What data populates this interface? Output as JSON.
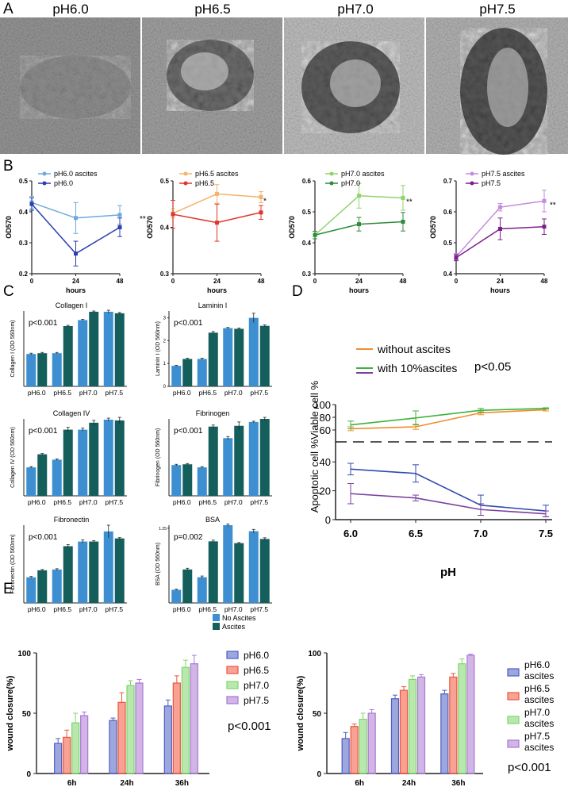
{
  "panel_labels": {
    "A": "A",
    "B": "B",
    "C": "C",
    "D": "D",
    "E": "E"
  },
  "micrographs": {
    "titles": [
      "pH6.0",
      "pH6.5",
      "pH7.0",
      "pH7.5"
    ]
  },
  "colors": {
    "b_light": [
      "#6fa8dc",
      "#f6b26b",
      "#8fd36b",
      "#c58bdc"
    ],
    "b_dark": [
      "#2b3fae",
      "#e0352b",
      "#2e8b3a",
      "#7b1f8c"
    ],
    "c_blue": "#3d8fd1",
    "c_teal": "#145e5b",
    "d_orange": "#f28c28",
    "d_green": "#3cb43c",
    "d_purple": "#7a3fa0",
    "d_blue": "#2f4bb0",
    "e": [
      "#4d5fc2",
      "#f0553e",
      "#7fd66b",
      "#a979d1"
    ]
  },
  "chart_data": [
    {
      "id": "B1",
      "type": "line",
      "ylabel": "OD570",
      "xlabel": "hours",
      "x": [
        0,
        24,
        48
      ],
      "ylim": [
        0.2,
        0.5
      ],
      "yticks": [
        0.2,
        0.3,
        0.4,
        0.5
      ],
      "xticks": [
        0,
        24,
        48
      ],
      "series": [
        {
          "name": "pH6.0 ascites",
          "values": [
            0.43,
            0.38,
            0.39
          ],
          "err": [
            0.02,
            0.05,
            0.03
          ]
        },
        {
          "name": "pH6.0",
          "values": [
            0.425,
            0.265,
            0.35
          ],
          "err": [
            0.02,
            0.04,
            0.03
          ]
        }
      ],
      "annotation": "**"
    },
    {
      "id": "B2",
      "type": "line",
      "ylabel": "OD570",
      "xlabel": "hours",
      "x": [
        0,
        24,
        48
      ],
      "ylim": [
        0.3,
        0.5
      ],
      "yticks": [
        0.3,
        0.4,
        0.5
      ],
      "xticks": [
        0,
        24,
        48
      ],
      "series": [
        {
          "name": "pH6.5 ascites",
          "values": [
            0.43,
            0.472,
            0.465
          ],
          "err": [
            0.01,
            0.02,
            0.012
          ]
        },
        {
          "name": "pH6.5",
          "values": [
            0.428,
            0.41,
            0.432
          ],
          "err": [
            0.03,
            0.04,
            0.015
          ]
        }
      ],
      "annotation": "*"
    },
    {
      "id": "B3",
      "type": "line",
      "ylabel": "OD570",
      "xlabel": "hours",
      "x": [
        0,
        24,
        48
      ],
      "ylim": [
        0.3,
        0.6
      ],
      "yticks": [
        0.3,
        0.4,
        0.5,
        0.6
      ],
      "xticks": [
        0,
        24,
        48
      ],
      "series": [
        {
          "name": "pH7.0 ascites",
          "values": [
            0.425,
            0.552,
            0.545
          ],
          "err": [
            0.012,
            0.04,
            0.04
          ]
        },
        {
          "name": "pH7.0",
          "values": [
            0.425,
            0.46,
            0.468
          ],
          "err": [
            0.012,
            0.022,
            0.03
          ]
        }
      ],
      "annotation": "**"
    },
    {
      "id": "B4",
      "type": "line",
      "ylabel": "OD570",
      "xlabel": "hours",
      "x": [
        0,
        24,
        48
      ],
      "ylim": [
        0.4,
        0.7
      ],
      "yticks": [
        0.4,
        0.5,
        0.6,
        0.7
      ],
      "xticks": [
        0,
        24,
        48
      ],
      "series": [
        {
          "name": "pH7.5 ascites",
          "values": [
            0.455,
            0.615,
            0.635
          ],
          "err": [
            0.01,
            0.012,
            0.035
          ]
        },
        {
          "name": "pH7.5",
          "values": [
            0.452,
            0.545,
            0.552
          ],
          "err": [
            0.01,
            0.035,
            0.025
          ]
        }
      ],
      "annotation": "**"
    },
    {
      "id": "C1",
      "type": "bar",
      "title": "Collagen I",
      "ylabel": "Collagen I (OD 560nm)",
      "categories": [
        "pH6.0",
        "pH6.5",
        "pH7.0",
        "pH7.5"
      ],
      "ylim": [
        0,
        1
      ],
      "series": [
        {
          "name": "No Ascites",
          "values": [
            0.43,
            0.44,
            0.88,
            0.99
          ],
          "err": [
            0.01,
            0.01,
            0.01,
            0.02
          ]
        },
        {
          "name": "Ascites",
          "values": [
            0.44,
            0.8,
            0.99,
            0.97
          ],
          "err": [
            0.01,
            0.01,
            0.01,
            0.01
          ]
        }
      ],
      "pvalue": "p<0.001"
    },
    {
      "id": "C2",
      "type": "bar",
      "title": "Laminin I",
      "ylabel": "Laminin I (OD 560nm)",
      "categories": [
        "pH6.0",
        "pH6.5",
        "pH7.0",
        "pH7.5"
      ],
      "ylim": [
        0,
        3.3
      ],
      "yticks": [
        0,
        1,
        2,
        3
      ],
      "series": [
        {
          "name": "No Ascites",
          "values": [
            0.9,
            1.2,
            2.55,
            3.0
          ],
          "err": [
            0.02,
            0.03,
            0.03,
            0.2
          ]
        },
        {
          "name": "Ascites",
          "values": [
            1.2,
            2.35,
            2.52,
            2.65
          ],
          "err": [
            0.03,
            0.05,
            0.03,
            0.04
          ]
        }
      ],
      "pvalue": "p<0.001"
    },
    {
      "id": "C3",
      "type": "bar",
      "title": "Collagen IV",
      "ylabel": "Collagen IV (OD 560nm)",
      "categories": [
        "pH6.0",
        "pH6.5",
        "pH7.0",
        "pH7.5"
      ],
      "ylim": [
        0,
        1
      ],
      "series": [
        {
          "name": "No Ascites",
          "values": [
            0.37,
            0.47,
            0.86,
            0.99
          ],
          "err": [
            0.01,
            0.01,
            0.02,
            0.02
          ]
        },
        {
          "name": "Ascites",
          "values": [
            0.54,
            0.86,
            0.95,
            0.98
          ],
          "err": [
            0.01,
            0.03,
            0.03,
            0.04
          ]
        }
      ],
      "pvalue": "p<0.001"
    },
    {
      "id": "C4",
      "type": "bar",
      "title": "Fibrinogen",
      "ylabel": "Fibrinogen (OD 560nm)",
      "categories": [
        "pH6.0",
        "pH6.5",
        "pH7.0",
        "pH7.5"
      ],
      "ylim": [
        0,
        1
      ],
      "series": [
        {
          "name": "No Ascites",
          "values": [
            0.4,
            0.37,
            0.75,
            0.96
          ],
          "err": [
            0.01,
            0.01,
            0.02,
            0.01
          ]
        },
        {
          "name": "Ascites",
          "values": [
            0.41,
            0.9,
            0.91,
            1.0
          ],
          "err": [
            0.01,
            0.02,
            0.05,
            0.02
          ]
        }
      ],
      "pvalue": "p<0.001"
    },
    {
      "id": "C5",
      "type": "bar",
      "title": "Fibronectin",
      "ylabel": "Fibronectin (OD 560nm)",
      "categories": [
        "pH6.0",
        "pH6.5",
        "pH7.0",
        "pH7.5"
      ],
      "ylim": [
        0,
        1
      ],
      "series": [
        {
          "name": "No Ascites",
          "values": [
            0.33,
            0.43,
            0.79,
            0.92
          ],
          "err": [
            0.01,
            0.01,
            0.02,
            0.08
          ]
        },
        {
          "name": "Ascites",
          "values": [
            0.42,
            0.73,
            0.79,
            0.83
          ],
          "err": [
            0.01,
            0.02,
            0.01,
            0.01
          ]
        }
      ],
      "pvalue": "p<0.001"
    },
    {
      "id": "C6",
      "type": "bar",
      "title": "BSA",
      "ylabel": "BSA (OD 560nm)",
      "categories": [
        "pH6.0",
        "pH6.5",
        "pH7.0",
        "pH7.5"
      ],
      "ylim": [
        0,
        1.3
      ],
      "ytick_labels": [
        "1.25"
      ],
      "series": [
        {
          "name": "No Ascites",
          "values": [
            0.22,
            0.43,
            1.3,
            1.2
          ],
          "err": [
            0.01,
            0.02,
            0.02,
            0.03
          ]
        },
        {
          "name": "Ascites",
          "values": [
            0.56,
            1.03,
            1.0,
            1.07
          ],
          "err": [
            0.02,
            0.02,
            0.01,
            0.02
          ]
        }
      ],
      "pvalue": "p=0.002"
    },
    {
      "id": "D",
      "type": "line",
      "xlabel": "pH",
      "x": [
        6.0,
        6.5,
        7.0,
        7.5
      ],
      "xticks": [
        "6.0",
        "6.5",
        "7.0",
        "7.5"
      ],
      "upper": {
        "ylabel": "Viable cell %",
        "ylim": [
          50,
          100
        ],
        "yticks": [
          60,
          80,
          100
        ]
      },
      "lower": {
        "ylabel": "Apoptotic cell %",
        "ylim": [
          0,
          50
        ],
        "yticks": [
          0,
          20,
          40
        ]
      },
      "series": [
        {
          "name": "without ascites",
          "panel": "upper",
          "values": [
            62,
            65,
            87,
            92
          ],
          "err": [
            3,
            4,
            3,
            2
          ]
        },
        {
          "name": "with 10%ascites",
          "panel": "upper",
          "values": [
            68,
            79,
            91,
            94
          ],
          "err": [
            6,
            11,
            3,
            1
          ]
        },
        {
          "name": "without ascites",
          "panel": "lower",
          "values": [
            35,
            32,
            10,
            6
          ],
          "err": [
            4,
            6,
            7,
            4
          ]
        },
        {
          "name": "with 10%ascites",
          "panel": "lower",
          "values": [
            18,
            15,
            7,
            4
          ],
          "err": [
            7,
            2,
            4,
            2
          ]
        }
      ],
      "pvalue": "p<0.05"
    },
    {
      "id": "E1",
      "type": "bar",
      "ylabel": "wound closure(%)",
      "categories": [
        "6h",
        "24h",
        "36h"
      ],
      "ylim": [
        0,
        100
      ],
      "yticks": [
        0,
        50,
        100
      ],
      "series": [
        {
          "name": "pH6.0",
          "values": [
            25,
            44,
            56
          ],
          "err": [
            4,
            2,
            5
          ]
        },
        {
          "name": "pH6.5",
          "values": [
            30,
            59,
            75
          ],
          "err": [
            6,
            8,
            6
          ]
        },
        {
          "name": "pH7.0",
          "values": [
            42,
            73,
            88
          ],
          "err": [
            8,
            4,
            6
          ]
        },
        {
          "name": "pH7.5",
          "values": [
            48,
            75,
            91
          ],
          "err": [
            3,
            3,
            7
          ]
        }
      ],
      "pvalue": "p<0.001"
    },
    {
      "id": "E2",
      "type": "bar",
      "ylabel": "wound closure(%)",
      "categories": [
        "6h",
        "24h",
        "36h"
      ],
      "ylim": [
        0,
        100
      ],
      "yticks": [
        0,
        50,
        100
      ],
      "series": [
        {
          "name": "pH6.0 ascites",
          "values": [
            29,
            62,
            66
          ],
          "err": [
            5,
            3,
            3
          ]
        },
        {
          "name": "pH6.5 ascites",
          "values": [
            39,
            69,
            80
          ],
          "err": [
            2,
            3,
            3
          ]
        },
        {
          "name": "pH7.0 ascites",
          "values": [
            45,
            78,
            91
          ],
          "err": [
            5,
            3,
            4
          ]
        },
        {
          "name": "pH7.5 ascites",
          "values": [
            50,
            80,
            98
          ],
          "err": [
            3,
            2,
            1
          ]
        }
      ],
      "pvalue": "p<0.001"
    }
  ]
}
